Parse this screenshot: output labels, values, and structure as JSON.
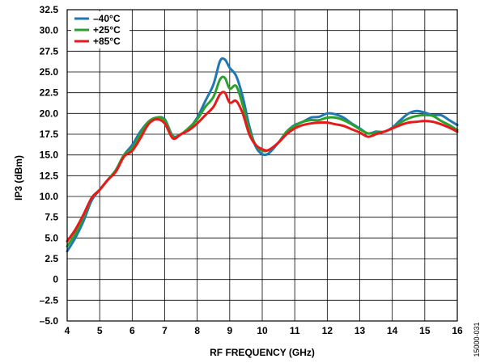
{
  "chart_data": {
    "type": "line",
    "title": "",
    "xlabel": "RF FREQUENCY (GHz)",
    "ylabel": "IP3 (dBm)",
    "xlim": [
      4,
      16
    ],
    "ylim": [
      -5,
      32.5
    ],
    "xticks": [
      4,
      5,
      6,
      7,
      8,
      9,
      10,
      11,
      12,
      13,
      14,
      15,
      16
    ],
    "xtick_labels": [
      "4",
      "5",
      "6",
      "7",
      "8",
      "9",
      "10",
      "11",
      "12",
      "13",
      "14",
      "15",
      "16"
    ],
    "yticks": [
      -5,
      -2.5,
      0,
      2.5,
      5,
      7.5,
      10,
      12.5,
      15,
      17.5,
      20,
      22.5,
      25,
      27.5,
      30,
      32.5
    ],
    "ytick_labels": [
      "–5.0",
      "–2.5",
      "0",
      "2.5",
      "5.0",
      "7.5",
      "10.0",
      "12.5",
      "15.0",
      "17.5",
      "20.0",
      "22.5",
      "25.0",
      "27.5",
      "30.0",
      "32.5"
    ],
    "grid": true,
    "legend_position": "top-left",
    "series": [
      {
        "name": "–40°C",
        "color": "#1f77b4",
        "x": [
          4.0,
          4.25,
          4.5,
          4.75,
          5.0,
          5.25,
          5.5,
          5.75,
          6.0,
          6.25,
          6.5,
          6.75,
          7.0,
          7.25,
          7.5,
          7.75,
          8.0,
          8.25,
          8.5,
          8.7,
          8.85,
          9.0,
          9.2,
          9.4,
          9.6,
          9.8,
          10.0,
          10.2,
          10.5,
          10.75,
          11.0,
          11.25,
          11.5,
          11.75,
          12.0,
          12.25,
          12.5,
          12.75,
          13.0,
          13.25,
          13.5,
          13.75,
          14.0,
          14.25,
          14.5,
          14.75,
          15.0,
          15.25,
          15.5,
          15.75,
          16.0
        ],
        "y": [
          3.4,
          5.0,
          7.0,
          9.5,
          10.8,
          12.0,
          13.2,
          15.0,
          16.2,
          17.8,
          19.0,
          19.5,
          19.3,
          17.3,
          17.5,
          18.2,
          19.5,
          21.5,
          23.5,
          26.3,
          26.5,
          25.5,
          24.5,
          22.0,
          18.5,
          16.0,
          15.1,
          15.2,
          16.5,
          17.8,
          18.6,
          19.0,
          19.5,
          19.6,
          20.0,
          19.9,
          19.5,
          18.8,
          18.2,
          17.6,
          17.8,
          17.8,
          18.3,
          19.2,
          20.0,
          20.3,
          20.1,
          19.8,
          19.8,
          19.2,
          18.6
        ]
      },
      {
        "name": "+25°C",
        "color": "#2ca02c",
        "x": [
          4.0,
          4.25,
          4.5,
          4.75,
          5.0,
          5.25,
          5.5,
          5.75,
          6.0,
          6.25,
          6.5,
          6.75,
          7.0,
          7.25,
          7.5,
          7.75,
          8.0,
          8.25,
          8.5,
          8.7,
          8.85,
          9.0,
          9.2,
          9.4,
          9.6,
          9.8,
          10.0,
          10.2,
          10.5,
          10.75,
          11.0,
          11.25,
          11.5,
          11.75,
          12.0,
          12.25,
          12.5,
          12.75,
          13.0,
          13.25,
          13.5,
          13.75,
          14.0,
          14.25,
          14.5,
          14.75,
          15.0,
          15.25,
          15.5,
          15.75,
          16.0
        ],
        "y": [
          4.0,
          5.5,
          7.5,
          9.8,
          10.8,
          12.0,
          13.2,
          15.0,
          15.8,
          17.5,
          19.0,
          19.5,
          19.2,
          17.2,
          17.5,
          18.3,
          19.3,
          20.8,
          22.0,
          24.1,
          24.3,
          23.0,
          23.3,
          21.0,
          18.0,
          16.2,
          15.5,
          15.6,
          16.5,
          17.8,
          18.5,
          19.0,
          19.2,
          19.2,
          19.5,
          19.5,
          19.2,
          18.7,
          18.1,
          17.6,
          17.7,
          17.8,
          18.2,
          18.9,
          19.4,
          19.7,
          19.8,
          19.7,
          19.1,
          18.6,
          18.0
        ]
      },
      {
        "name": "+85°C",
        "color": "#e8191b",
        "x": [
          4.0,
          4.25,
          4.5,
          4.75,
          5.0,
          5.25,
          5.5,
          5.75,
          6.0,
          6.25,
          6.5,
          6.75,
          7.0,
          7.25,
          7.5,
          7.75,
          8.0,
          8.25,
          8.5,
          8.7,
          8.85,
          9.0,
          9.2,
          9.4,
          9.6,
          9.8,
          10.0,
          10.2,
          10.5,
          10.75,
          11.0,
          11.25,
          11.5,
          11.75,
          12.0,
          12.25,
          12.5,
          12.75,
          13.0,
          13.25,
          13.5,
          13.75,
          14.0,
          14.25,
          14.5,
          14.75,
          15.0,
          15.25,
          15.5,
          15.75,
          16.0
        ],
        "y": [
          4.6,
          6.0,
          7.8,
          9.8,
          10.8,
          12.0,
          13.0,
          14.8,
          15.5,
          17.0,
          18.7,
          19.3,
          18.8,
          17.0,
          17.5,
          18.0,
          18.8,
          19.8,
          20.8,
          22.3,
          22.5,
          21.3,
          21.5,
          20.0,
          17.5,
          16.2,
          15.7,
          15.6,
          16.5,
          17.5,
          18.2,
          18.6,
          18.8,
          18.9,
          18.9,
          18.7,
          18.5,
          18.1,
          17.7,
          17.2,
          17.5,
          17.8,
          18.2,
          18.6,
          18.9,
          19.0,
          19.1,
          19.0,
          18.7,
          18.3,
          17.8
        ]
      }
    ]
  },
  "figure_id": "15000-031"
}
